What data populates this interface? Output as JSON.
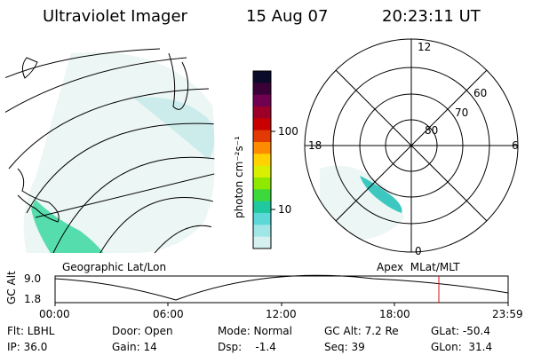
{
  "header": {
    "instrument": "Ultraviolet Imager",
    "date": "15 Aug 07",
    "time": "20:23:11 UT"
  },
  "colorbar": {
    "unit_label": "photon cm⁻²s⁻¹",
    "ticks": [
      "100",
      "10"
    ],
    "colors": [
      "#0a0a2a",
      "#3a0038",
      "#700050",
      "#9c0028",
      "#c80000",
      "#e23a00",
      "#ff8c00",
      "#ffd200",
      "#d8f000",
      "#8ee800",
      "#3cd83c",
      "#20c8a0",
      "#5cd8d8",
      "#a0e6e6",
      "#d6f0f0"
    ]
  },
  "geo_panel": {
    "label": "Geographic Lat/Lon"
  },
  "polar_panel": {
    "label": "Apex  MLat/MLT",
    "lat_labels": [
      "60",
      "70",
      "80"
    ],
    "mlt_labels": {
      "top": "12",
      "left": "18",
      "right": "6",
      "bottom": "0"
    }
  },
  "altitude_plot": {
    "ylabel": "GC Alt",
    "yticks": [
      "9.0",
      "1.8"
    ],
    "xticks": [
      "00:00",
      "06:00",
      "12:00",
      "18:00",
      "23:59"
    ],
    "marker_color": "#d01010"
  },
  "info": {
    "flt": "Flt: LBHL",
    "ip": "IP: 36.0",
    "door": "Door: Open",
    "gain": "Gain: 14",
    "mode": "Mode: Normal",
    "dsp": "Dsp:    -1.4",
    "gcalt": "GC Alt: 7.2 Re",
    "seq": "Seq: 39",
    "glat": "GLat: -50.4",
    "glon": "GLon:  31.4"
  }
}
